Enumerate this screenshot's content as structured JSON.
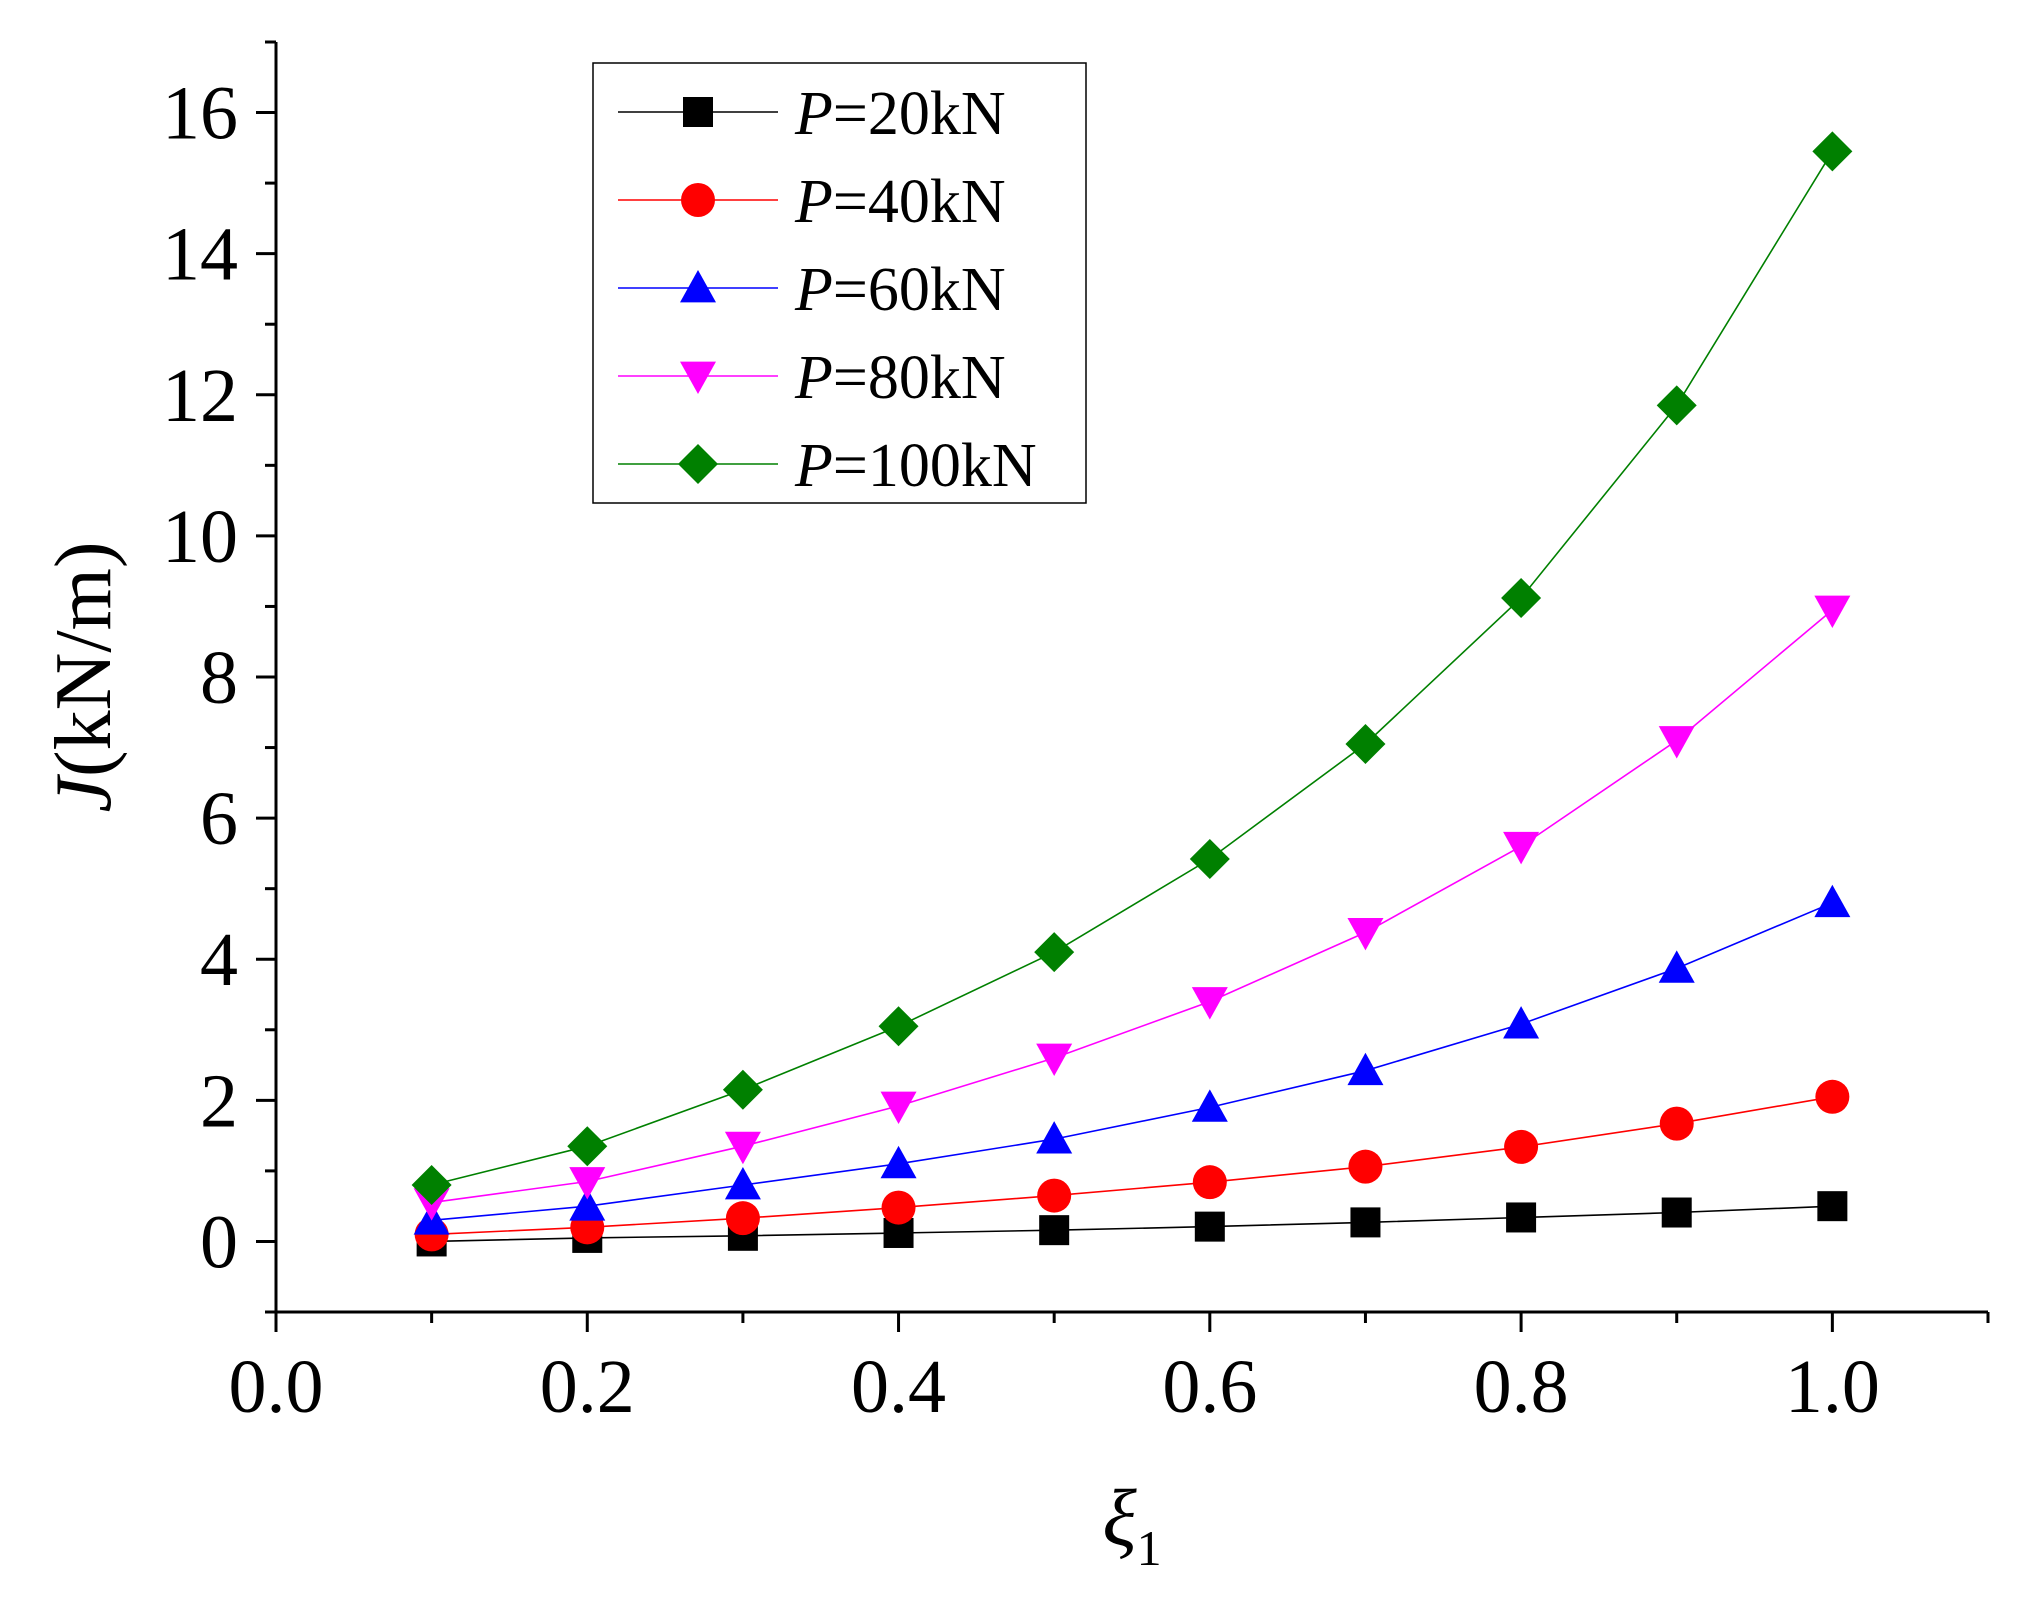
{
  "chart_data": {
    "type": "line",
    "title": "",
    "xlabel": "ξ",
    "xlabel_subscript": "1",
    "ylabel_var": "J",
    "ylabel_unit": "(kN/m)",
    "xlim": [
      0.0,
      1.1
    ],
    "ylim": [
      -1,
      17
    ],
    "x_ticks": [
      0.0,
      0.2,
      0.4,
      0.6,
      0.8,
      1.0
    ],
    "x_tick_labels": [
      "0.0",
      "0.2",
      "0.4",
      "0.6",
      "0.8",
      "1.0"
    ],
    "y_ticks": [
      0,
      2,
      4,
      6,
      8,
      10,
      12,
      14,
      16
    ],
    "y_tick_labels": [
      "0",
      "2",
      "4",
      "6",
      "8",
      "10",
      "12",
      "14",
      "16"
    ],
    "grid": false,
    "legend_position": "top-left",
    "x": [
      0.1,
      0.2,
      0.3,
      0.4,
      0.5,
      0.6,
      0.7,
      0.8,
      0.9,
      1.0
    ],
    "series": [
      {
        "name": "P=20kN",
        "legend_var": "P",
        "legend_rest": "=20kN",
        "color": "#000000",
        "marker": "square",
        "values": [
          0.0,
          0.05,
          0.08,
          0.12,
          0.16,
          0.21,
          0.27,
          0.34,
          0.41,
          0.5
        ]
      },
      {
        "name": "P=40kN",
        "legend_var": "P",
        "legend_rest": "=40kN",
        "color": "#ff0000",
        "marker": "circle",
        "values": [
          0.1,
          0.2,
          0.33,
          0.48,
          0.65,
          0.84,
          1.06,
          1.34,
          1.67,
          2.05
        ]
      },
      {
        "name": "P=60kN",
        "legend_var": "P",
        "legend_rest": "=60kN",
        "color": "#0000ff",
        "marker": "triangle-up",
        "values": [
          0.3,
          0.5,
          0.8,
          1.1,
          1.45,
          1.9,
          2.42,
          3.08,
          3.87,
          4.8
        ]
      },
      {
        "name": "P=80kN",
        "legend_var": "P",
        "legend_rest": "=80kN",
        "color": "#ff00ff",
        "marker": "triangle-down",
        "values": [
          0.55,
          0.85,
          1.35,
          1.92,
          2.6,
          3.4,
          4.38,
          5.6,
          7.1,
          8.95
        ]
      },
      {
        "name": "P=100kN",
        "legend_var": "P",
        "legend_rest": "=100kN",
        "color": "#008000",
        "marker": "diamond",
        "values": [
          0.8,
          1.35,
          2.15,
          3.05,
          4.1,
          5.42,
          7.05,
          9.12,
          11.85,
          15.45
        ]
      }
    ]
  }
}
